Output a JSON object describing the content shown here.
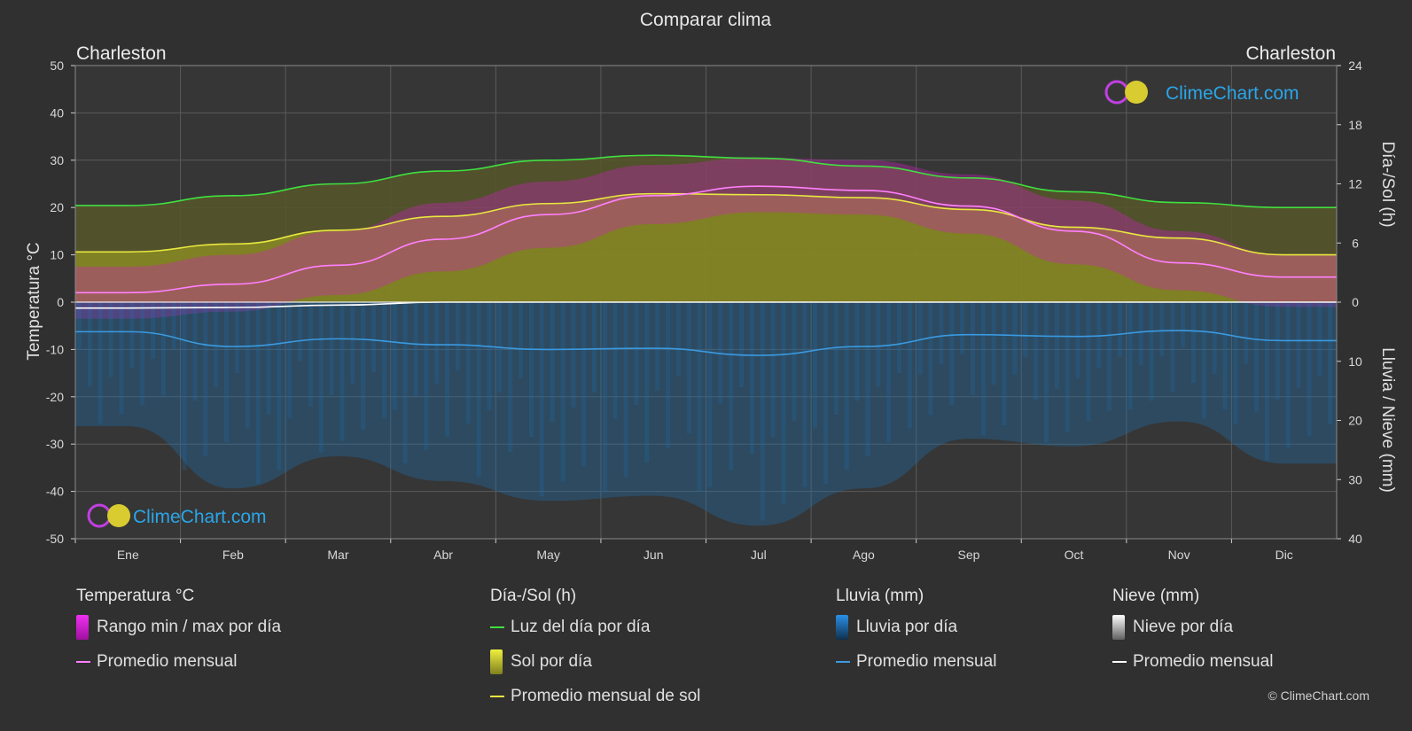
{
  "title": "Comparar clima",
  "location_left": "Charleston",
  "location_right": "Charleston",
  "brand": "ClimeChart.com",
  "copyright": "© ClimeChart.com",
  "legend": {
    "temp": {
      "heading": "Temperatura °C",
      "range": "Rango min / max por día",
      "avg": "Promedio mensual"
    },
    "sun": {
      "heading": "Día-/Sol (h)",
      "daylight": "Luz del día por día",
      "sun_per_day": "Sol por día",
      "sun_avg": "Promedio mensual de sol"
    },
    "rain": {
      "heading": "Lluvia (mm)",
      "rain_per_day": "Lluvia por día",
      "avg": "Promedio mensual"
    },
    "snow": {
      "heading": "Nieve (mm)",
      "snow_per_day": "Nieve por día",
      "avg": "Promedio mensual"
    }
  },
  "colors": {
    "background": "#303030",
    "temp_range": "#d020c0",
    "temp_avg": "#ff80ff",
    "daylight": "#40e040",
    "sun_fill": "#9a9a20",
    "sun_avg": "#e8e840",
    "rain": "#1e6fb0",
    "rain_avg": "#3a9ae0",
    "snow": "#b0b0b0",
    "snow_avg": "#ffffff",
    "brand_blue": "#2aa6e8"
  },
  "chart_data": {
    "type": "area",
    "categories": [
      "Ene",
      "Feb",
      "Mar",
      "Abr",
      "May",
      "Jun",
      "Jul",
      "Ago",
      "Sep",
      "Oct",
      "Nov",
      "Dic"
    ],
    "axes": {
      "left": {
        "label": "Temperatura °C",
        "ylim": [
          -50,
          50
        ],
        "ticks": [
          50,
          40,
          30,
          20,
          10,
          0,
          -10,
          -20,
          -30,
          -40,
          -50
        ]
      },
      "right_top": {
        "label": "Día-/Sol (h)",
        "ylim": [
          0,
          24
        ],
        "ticks": [
          24,
          18,
          12,
          6,
          0
        ]
      },
      "right_bottom": {
        "label": "Lluvia / Nieve (mm)",
        "ylim": [
          0,
          40
        ],
        "ticks": [
          10,
          20,
          30,
          40
        ]
      }
    },
    "grid": true,
    "series": [
      {
        "name": "Luz del día por día",
        "unit": "h",
        "values": [
          9.8,
          10.8,
          12.0,
          13.3,
          14.4,
          14.9,
          14.6,
          13.8,
          12.6,
          11.2,
          10.1,
          9.6
        ]
      },
      {
        "name": "Promedio mensual de sol",
        "unit": "h",
        "values": [
          5.1,
          5.9,
          7.3,
          8.7,
          10.0,
          11.0,
          10.9,
          10.6,
          9.4,
          7.6,
          6.5,
          4.8
        ]
      },
      {
        "name": "Promedio mensual",
        "unit": "°C",
        "values": [
          2.0,
          3.8,
          7.8,
          13.3,
          18.5,
          22.5,
          24.5,
          23.6,
          20.3,
          15.0,
          8.3,
          5.3
        ]
      },
      {
        "name": "Temperatura máxima",
        "unit": "°C",
        "values": [
          7.5,
          10.0,
          15.0,
          21.0,
          25.5,
          29.0,
          30.5,
          30.0,
          27.0,
          21.5,
          15.0,
          10.0
        ]
      },
      {
        "name": "Temperatura mínima",
        "unit": "°C",
        "values": [
          -3.5,
          -2.0,
          1.5,
          6.5,
          11.5,
          16.5,
          19.0,
          18.5,
          14.5,
          8.0,
          2.5,
          -1.0
        ]
      },
      {
        "name": "Lluvia promedio mensual",
        "unit": "mm",
        "values": [
          5.0,
          7.5,
          6.2,
          7.2,
          8.0,
          7.8,
          9.0,
          7.5,
          5.5,
          5.8,
          4.8,
          6.5
        ]
      },
      {
        "name": "Nieve promedio mensual",
        "unit": "mm",
        "values": [
          1.0,
          0.9,
          0.5,
          0.0,
          0.0,
          0.0,
          0.0,
          0.0,
          0.0,
          0.0,
          0.0,
          0.0
        ]
      }
    ]
  }
}
